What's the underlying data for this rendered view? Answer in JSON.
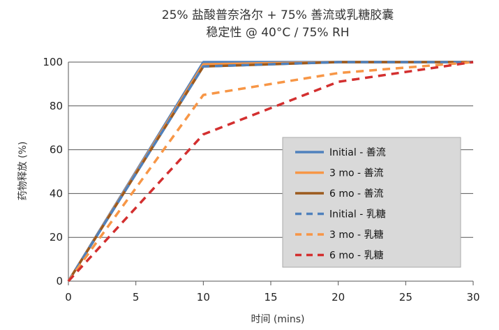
{
  "chart_data": {
    "type": "line",
    "title": "25% 盐酸普奈洛尔 + 75% 善流或乳糖胶囊",
    "subtitle": "稳定性 @ 40°C / 75% RH",
    "xlabel": "时间 (mins)",
    "ylabel": "药物释放 (%)",
    "xlim": [
      0,
      30
    ],
    "ylim": [
      0,
      100
    ],
    "xticks": [
      0,
      5,
      10,
      15,
      20,
      25,
      30
    ],
    "yticks": [
      0,
      20,
      40,
      60,
      80,
      100
    ],
    "grid": "horizontal",
    "legend_position": "inside-right",
    "series": [
      {
        "name": "Initial - 善流",
        "color": "#4f81bd",
        "dash": "solid",
        "x": [
          0,
          10,
          20,
          30
        ],
        "y": [
          0,
          100,
          100,
          100
        ]
      },
      {
        "name": "3 mo - 善流",
        "color": "#f79646",
        "dash": "solid",
        "x": [
          0,
          10,
          20,
          30
        ],
        "y": [
          0,
          99,
          100,
          100
        ]
      },
      {
        "name": "6 mo - 善流",
        "color": "#9c5a1e",
        "dash": "solid",
        "x": [
          0,
          10,
          20,
          30
        ],
        "y": [
          0,
          98,
          100,
          100
        ]
      },
      {
        "name": "Initial - 乳糖",
        "color": "#4f81bd",
        "dash": "dashed",
        "x": [
          0,
          10,
          20,
          30
        ],
        "y": [
          0,
          98,
          100,
          100
        ]
      },
      {
        "name": "3 mo - 乳糖",
        "color": "#f79646",
        "dash": "dashed",
        "x": [
          0,
          10,
          20,
          30
        ],
        "y": [
          0,
          85,
          95,
          100
        ]
      },
      {
        "name": "6 mo - 乳糖",
        "color": "#d32f2f",
        "dash": "dashed",
        "x": [
          0,
          10,
          20,
          30
        ],
        "y": [
          0,
          67,
          91,
          100
        ]
      }
    ]
  }
}
